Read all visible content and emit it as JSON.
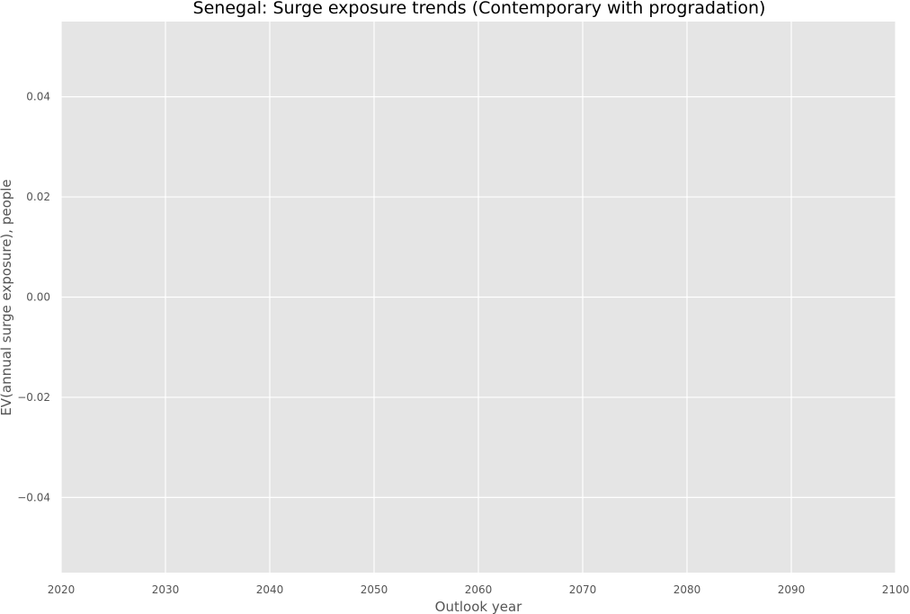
{
  "chart_data": {
    "type": "line",
    "title": "Senegal: Surge exposure trends (Contemporary with progradation)",
    "xlabel": "Outlook year",
    "ylabel": "EV(annual surge exposure), people",
    "xlim": [
      2020,
      2100
    ],
    "ylim": [
      -0.055,
      0.055
    ],
    "x_ticks": [
      2020,
      2030,
      2040,
      2050,
      2060,
      2070,
      2080,
      2090,
      2100
    ],
    "x_tick_labels": [
      "2020",
      "2030",
      "2040",
      "2050",
      "2060",
      "2070",
      "2080",
      "2090",
      "2100"
    ],
    "y_ticks": [
      -0.04,
      -0.02,
      0.0,
      0.02,
      0.04
    ],
    "y_tick_labels": [
      "−0.04",
      "−0.02",
      "0.00",
      "0.02",
      "0.04"
    ],
    "series": [],
    "grid": true,
    "colors": {
      "plot_background": "#e5e5e5",
      "grid": "#ffffff",
      "text": "#555555",
      "title": "#000000"
    }
  }
}
